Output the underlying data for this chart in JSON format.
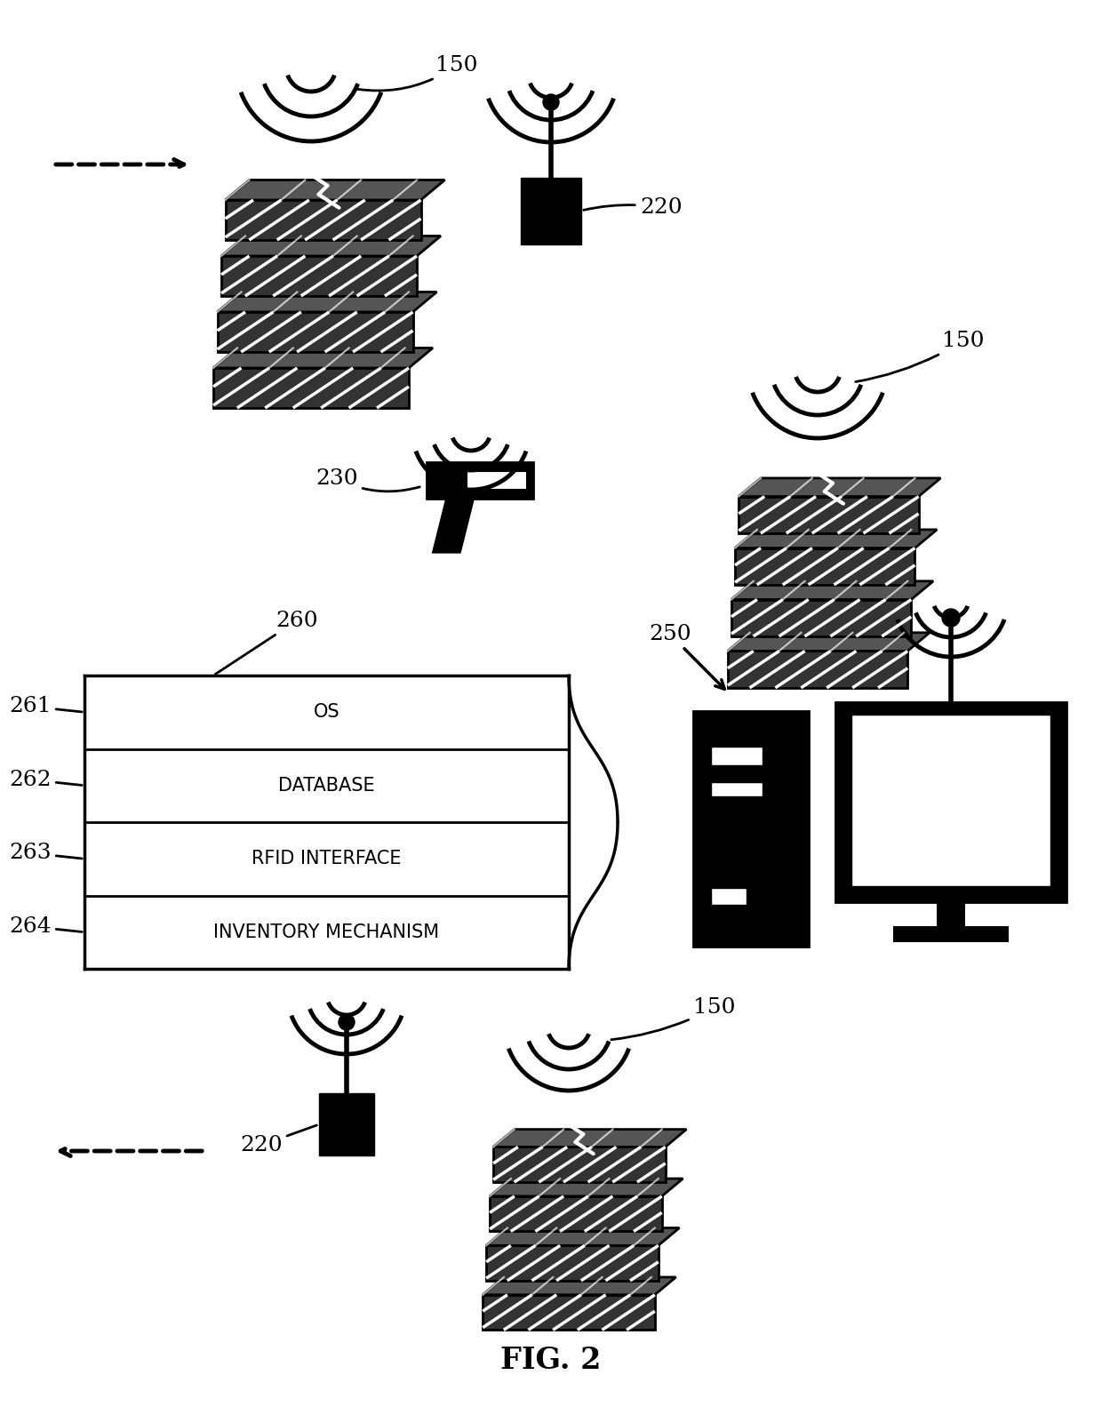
{
  "bg_color": "#ffffff",
  "fig_label": "FIG. 2",
  "layers": [
    "OS",
    "DATABASE",
    "RFID INTERFACE",
    "INVENTORY MECHANISM"
  ],
  "left_labels": [
    "261",
    "262",
    "263",
    "264"
  ]
}
